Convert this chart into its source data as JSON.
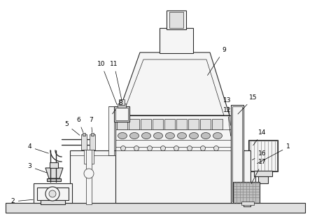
{
  "bg_color": "#ffffff",
  "lc": "#2a2a2a",
  "fc_light": "#f5f5f5",
  "fc_mid": "#e0e0e0",
  "fc_dark": "#c0c0c0",
  "fc_hatch": "#b0b0b0"
}
